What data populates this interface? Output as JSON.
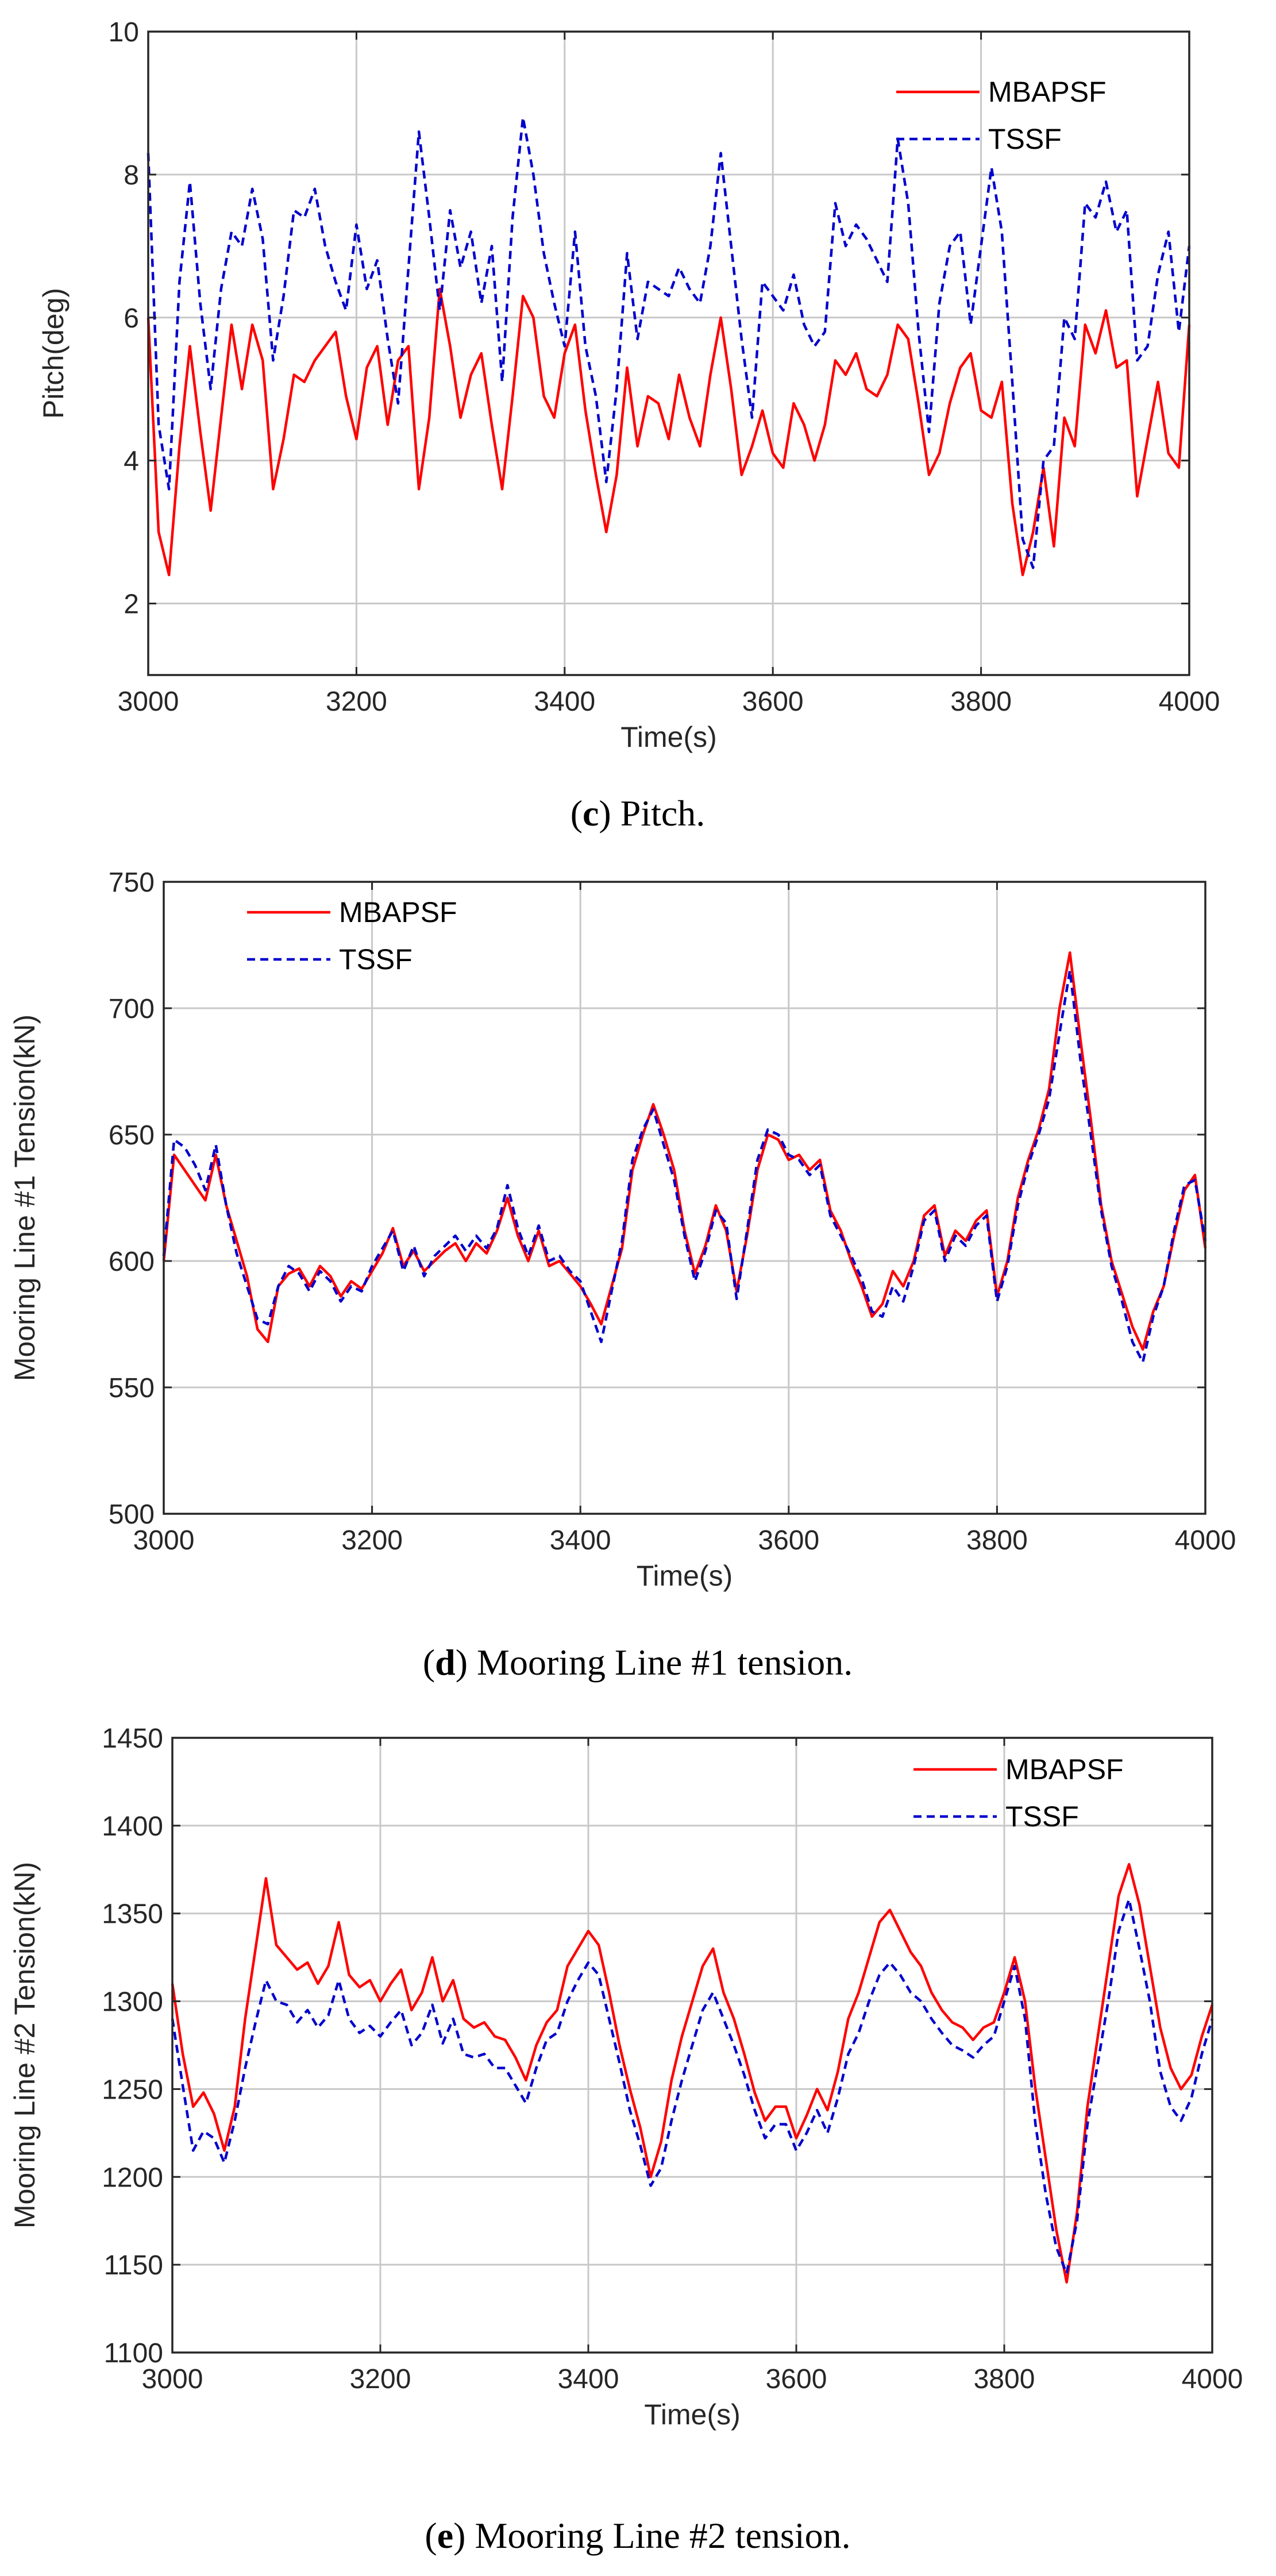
{
  "colors": {
    "primary": "#ff0000",
    "secondary": "#0000cc"
  },
  "captions": [
    {
      "letter": "c",
      "text": " Pitch."
    },
    {
      "letter": "d",
      "text": " Mooring Line #1 tension."
    },
    {
      "letter": "e",
      "text": " Mooring Line #2 tension."
    }
  ],
  "chart_data": [
    {
      "type": "line",
      "title": "",
      "xlabel": "Time(s)",
      "ylabel": "Pitch(deg)",
      "xlim": [
        3000,
        4000
      ],
      "ylim": [
        1,
        10
      ],
      "xticks": [
        3000,
        3200,
        3400,
        3600,
        3800,
        4000
      ],
      "yticks": [
        2,
        4,
        6,
        8,
        10
      ],
      "grid": true,
      "legend_position": "top-right",
      "x": [
        3000,
        3010,
        3020,
        3030,
        3040,
        3050,
        3060,
        3070,
        3080,
        3090,
        3100,
        3110,
        3120,
        3130,
        3140,
        3150,
        3160,
        3170,
        3180,
        3190,
        3200,
        3210,
        3220,
        3230,
        3240,
        3250,
        3260,
        3270,
        3280,
        3290,
        3300,
        3310,
        3320,
        3330,
        3340,
        3350,
        3360,
        3370,
        3380,
        3390,
        3400,
        3410,
        3420,
        3430,
        3440,
        3450,
        3460,
        3470,
        3480,
        3490,
        3500,
        3510,
        3520,
        3530,
        3540,
        3550,
        3560,
        3570,
        3580,
        3590,
        3600,
        3610,
        3620,
        3630,
        3640,
        3650,
        3660,
        3670,
        3680,
        3690,
        3700,
        3710,
        3720,
        3730,
        3740,
        3750,
        3760,
        3770,
        3780,
        3790,
        3800,
        3810,
        3820,
        3830,
        3840,
        3850,
        3860,
        3870,
        3880,
        3890,
        3900,
        3910,
        3920,
        3930,
        3940,
        3950,
        3960,
        3970,
        3980,
        3990,
        4000
      ],
      "series": [
        {
          "name": "MBAPSF",
          "style": "solid",
          "values": [
            6.0,
            3.0,
            2.4,
            4.2,
            5.6,
            4.4,
            3.3,
            4.6,
            5.9,
            5.0,
            5.9,
            5.4,
            3.6,
            4.3,
            5.2,
            5.1,
            5.4,
            5.6,
            5.8,
            4.9,
            4.3,
            5.3,
            5.6,
            4.5,
            5.4,
            5.6,
            3.6,
            4.6,
            6.4,
            5.6,
            4.6,
            5.2,
            5.5,
            4.5,
            3.6,
            4.9,
            6.3,
            6.0,
            4.9,
            4.6,
            5.5,
            5.9,
            4.7,
            3.8,
            3.0,
            3.8,
            5.3,
            4.2,
            4.9,
            4.8,
            4.3,
            5.2,
            4.6,
            4.2,
            5.2,
            6.0,
            5.0,
            3.8,
            4.2,
            4.7,
            4.1,
            3.9,
            4.8,
            4.5,
            4.0,
            4.5,
            5.4,
            5.2,
            5.5,
            5.0,
            4.9,
            5.2,
            5.9,
            5.7,
            4.8,
            3.8,
            4.1,
            4.8,
            5.3,
            5.5,
            4.7,
            4.6,
            5.1,
            3.4,
            2.4,
            3.0,
            3.9,
            2.8,
            4.6,
            4.2,
            5.9,
            5.5,
            6.1,
            5.3,
            5.4,
            3.5,
            4.3,
            5.1,
            4.1,
            3.9,
            5.9
          ]
        },
        {
          "name": "TSSF",
          "style": "dashed",
          "values": [
            8.3,
            4.5,
            3.6,
            6.5,
            7.9,
            6.2,
            5.0,
            6.4,
            7.2,
            7.0,
            7.8,
            7.1,
            5.4,
            6.3,
            7.5,
            7.4,
            7.8,
            7.0,
            6.5,
            6.1,
            7.3,
            6.4,
            6.8,
            5.7,
            4.8,
            6.7,
            8.6,
            7.4,
            6.1,
            7.5,
            6.7,
            7.2,
            6.2,
            7.0,
            5.1,
            7.4,
            8.8,
            8.0,
            6.9,
            6.2,
            5.6,
            7.2,
            5.6,
            4.9,
            3.7,
            5.0,
            6.9,
            5.7,
            6.5,
            6.4,
            6.3,
            6.7,
            6.4,
            6.2,
            7.0,
            8.3,
            7.0,
            5.7,
            4.6,
            6.5,
            6.3,
            6.1,
            6.6,
            5.9,
            5.6,
            5.8,
            7.6,
            7.0,
            7.3,
            7.1,
            6.8,
            6.5,
            8.5,
            7.6,
            5.8,
            4.4,
            6.2,
            7.0,
            7.2,
            5.9,
            7.0,
            8.1,
            7.2,
            5.1,
            2.9,
            2.5,
            4.0,
            4.2,
            6.0,
            5.7,
            7.6,
            7.4,
            7.9,
            7.2,
            7.5,
            5.4,
            5.6,
            6.6,
            7.2,
            5.8,
            7.0
          ]
        }
      ]
    },
    {
      "type": "line",
      "title": "",
      "xlabel": "Time(s)",
      "ylabel": "Mooring Line #1 Tension(kN)",
      "xlim": [
        3000,
        4000
      ],
      "ylim": [
        500,
        750
      ],
      "xticks": [
        3000,
        3200,
        3400,
        3600,
        3800,
        4000
      ],
      "yticks": [
        500,
        550,
        600,
        650,
        700,
        750
      ],
      "grid": true,
      "legend_position": "top-left",
      "x": [
        3000,
        3010,
        3020,
        3030,
        3040,
        3050,
        3060,
        3070,
        3080,
        3090,
        3100,
        3110,
        3120,
        3130,
        3140,
        3150,
        3160,
        3170,
        3180,
        3190,
        3200,
        3210,
        3220,
        3230,
        3240,
        3250,
        3260,
        3270,
        3280,
        3290,
        3300,
        3310,
        3320,
        3330,
        3340,
        3350,
        3360,
        3370,
        3380,
        3390,
        3400,
        3410,
        3420,
        3430,
        3440,
        3450,
        3460,
        3470,
        3480,
        3490,
        3500,
        3510,
        3520,
        3530,
        3540,
        3550,
        3560,
        3570,
        3580,
        3590,
        3600,
        3610,
        3620,
        3630,
        3640,
        3650,
        3660,
        3670,
        3680,
        3690,
        3700,
        3710,
        3720,
        3730,
        3740,
        3750,
        3760,
        3770,
        3780,
        3790,
        3800,
        3810,
        3820,
        3830,
        3840,
        3850,
        3860,
        3870,
        3880,
        3890,
        3900,
        3910,
        3920,
        3930,
        3940,
        3950,
        3960,
        3970,
        3980,
        3990,
        4000
      ],
      "series": [
        {
          "name": "MBAPSF",
          "style": "solid",
          "values": [
            600,
            642,
            636,
            630,
            624,
            642,
            622,
            608,
            594,
            573,
            568,
            590,
            595,
            597,
            590,
            598,
            594,
            586,
            592,
            589,
            596,
            603,
            613,
            598,
            604,
            596,
            600,
            604,
            607,
            600,
            607,
            603,
            612,
            625,
            610,
            600,
            612,
            598,
            600,
            595,
            590,
            583,
            575,
            590,
            605,
            636,
            650,
            662,
            650,
            636,
            612,
            595,
            606,
            622,
            612,
            588,
            610,
            636,
            650,
            648,
            640,
            642,
            636,
            640,
            620,
            612,
            600,
            590,
            578,
            583,
            596,
            590,
            600,
            618,
            622,
            602,
            612,
            608,
            616,
            620,
            586,
            600,
            625,
            640,
            652,
            668,
            700,
            722,
            688,
            656,
            622,
            600,
            587,
            574,
            565,
            580,
            590,
            610,
            628,
            634,
            605
          ]
        },
        {
          "name": "TSSF",
          "style": "dashed",
          "values": [
            602,
            648,
            645,
            638,
            628,
            646,
            622,
            603,
            590,
            577,
            575,
            590,
            598,
            595,
            588,
            596,
            592,
            584,
            590,
            588,
            598,
            605,
            612,
            596,
            606,
            594,
            602,
            606,
            610,
            604,
            610,
            605,
            613,
            630,
            613,
            602,
            614,
            600,
            602,
            596,
            592,
            580,
            568,
            588,
            608,
            640,
            652,
            660,
            646,
            632,
            610,
            592,
            604,
            620,
            615,
            585,
            612,
            640,
            652,
            650,
            642,
            640,
            634,
            638,
            618,
            610,
            602,
            593,
            580,
            578,
            590,
            584,
            598,
            616,
            620,
            600,
            610,
            606,
            614,
            618,
            584,
            598,
            622,
            638,
            650,
            664,
            690,
            715,
            680,
            650,
            620,
            598,
            584,
            568,
            560,
            578,
            590,
            612,
            630,
            632,
            608
          ]
        }
      ]
    },
    {
      "type": "line",
      "title": "",
      "xlabel": "Time(s)",
      "ylabel": "Mooring Line #2 Tension(kN)",
      "xlim": [
        3000,
        4000
      ],
      "ylim": [
        1100,
        1450
      ],
      "xticks": [
        3000,
        3200,
        3400,
        3600,
        3800,
        4000
      ],
      "yticks": [
        1100,
        1150,
        1200,
        1250,
        1300,
        1350,
        1400,
        1450
      ],
      "grid": true,
      "legend_position": "top-right",
      "x": [
        3000,
        3010,
        3020,
        3030,
        3040,
        3050,
        3060,
        3070,
        3080,
        3090,
        3100,
        3110,
        3120,
        3130,
        3140,
        3150,
        3160,
        3170,
        3180,
        3190,
        3200,
        3210,
        3220,
        3230,
        3240,
        3250,
        3260,
        3270,
        3280,
        3290,
        3300,
        3310,
        3320,
        3330,
        3340,
        3350,
        3360,
        3370,
        3380,
        3390,
        3400,
        3410,
        3420,
        3430,
        3440,
        3450,
        3460,
        3470,
        3480,
        3490,
        3500,
        3510,
        3520,
        3530,
        3540,
        3550,
        3560,
        3570,
        3580,
        3590,
        3600,
        3610,
        3620,
        3630,
        3640,
        3650,
        3660,
        3670,
        3680,
        3690,
        3700,
        3710,
        3720,
        3730,
        3740,
        3750,
        3760,
        3770,
        3780,
        3790,
        3800,
        3810,
        3820,
        3830,
        3840,
        3850,
        3860,
        3870,
        3880,
        3890,
        3900,
        3910,
        3920,
        3930,
        3940,
        3950,
        3960,
        3970,
        3980,
        3990,
        4000
      ],
      "series": [
        {
          "name": "MBAPSF",
          "style": "solid",
          "values": [
            1310,
            1270,
            1240,
            1248,
            1236,
            1215,
            1240,
            1290,
            1330,
            1370,
            1332,
            1325,
            1318,
            1322,
            1310,
            1320,
            1345,
            1315,
            1308,
            1312,
            1300,
            1310,
            1318,
            1295,
            1305,
            1325,
            1300,
            1312,
            1290,
            1285,
            1288,
            1280,
            1278,
            1268,
            1255,
            1275,
            1288,
            1295,
            1320,
            1330,
            1340,
            1332,
            1305,
            1275,
            1250,
            1228,
            1200,
            1220,
            1255,
            1280,
            1300,
            1320,
            1330,
            1305,
            1290,
            1270,
            1248,
            1232,
            1240,
            1240,
            1222,
            1235,
            1250,
            1238,
            1260,
            1290,
            1305,
            1325,
            1345,
            1352,
            1340,
            1328,
            1320,
            1305,
            1295,
            1288,
            1285,
            1278,
            1285,
            1288,
            1305,
            1325,
            1300,
            1250,
            1210,
            1170,
            1140,
            1180,
            1240,
            1280,
            1320,
            1360,
            1378,
            1355,
            1320,
            1285,
            1262,
            1250,
            1258,
            1280,
            1298
          ]
        },
        {
          "name": "TSSF",
          "style": "dashed",
          "values": [
            1290,
            1252,
            1215,
            1226,
            1222,
            1208,
            1232,
            1262,
            1288,
            1312,
            1300,
            1298,
            1288,
            1295,
            1285,
            1292,
            1312,
            1290,
            1282,
            1286,
            1280,
            1288,
            1295,
            1275,
            1282,
            1298,
            1276,
            1290,
            1270,
            1268,
            1270,
            1262,
            1262,
            1252,
            1242,
            1262,
            1278,
            1282,
            1300,
            1312,
            1322,
            1315,
            1290,
            1265,
            1238,
            1218,
            1195,
            1205,
            1232,
            1255,
            1275,
            1295,
            1305,
            1290,
            1275,
            1258,
            1238,
            1222,
            1230,
            1230,
            1215,
            1225,
            1238,
            1225,
            1245,
            1270,
            1282,
            1300,
            1315,
            1322,
            1315,
            1305,
            1300,
            1290,
            1282,
            1275,
            1272,
            1268,
            1275,
            1280,
            1300,
            1320,
            1290,
            1230,
            1190,
            1160,
            1145,
            1175,
            1230,
            1265,
            1300,
            1340,
            1358,
            1330,
            1300,
            1260,
            1240,
            1232,
            1245,
            1270,
            1290
          ]
        }
      ]
    }
  ]
}
